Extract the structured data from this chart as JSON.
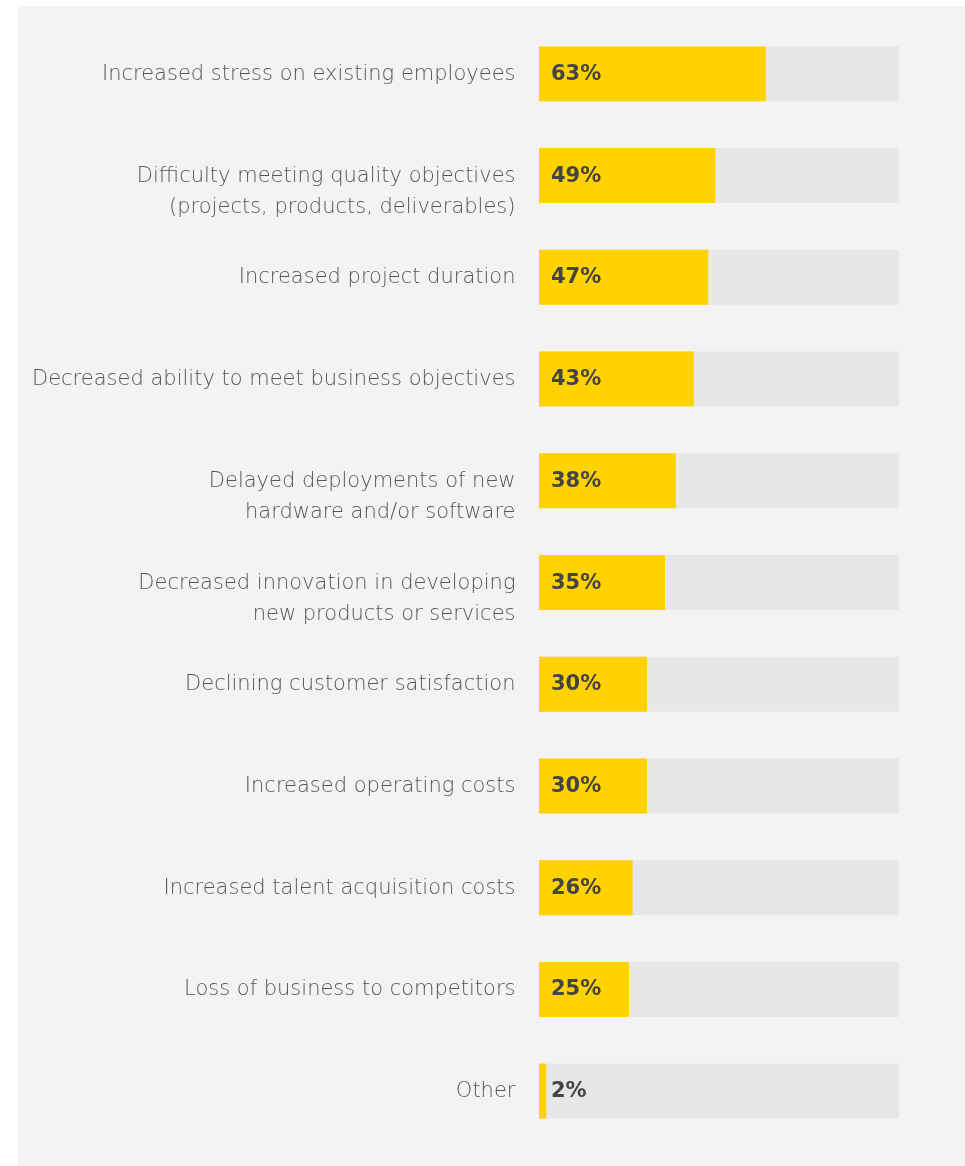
{
  "chart_data": {
    "type": "bar",
    "orientation": "horizontal",
    "categories": [
      "Increased stress on existing employees",
      "Difficulty meeting quality objectives\n(projects, products, deliverables)",
      "Increased project duration",
      "Decreased ability to meet business objectives",
      "Delayed deployments of new\nhardware and/or software",
      "Decreased innovation in developing\nnew products or services",
      "Declining customer satisfaction",
      "Increased operating costs",
      "Increased talent acquisition costs",
      "Loss of business to competitors",
      "Other"
    ],
    "values": [
      63,
      49,
      47,
      43,
      38,
      35,
      30,
      30,
      26,
      25,
      2
    ],
    "value_labels": [
      "63%",
      "49%",
      "47%",
      "43%",
      "38%",
      "35%",
      "30%",
      "30%",
      "26%",
      "25%",
      "2%"
    ],
    "color": "#ffd200",
    "xlim": [
      0,
      100
    ]
  }
}
